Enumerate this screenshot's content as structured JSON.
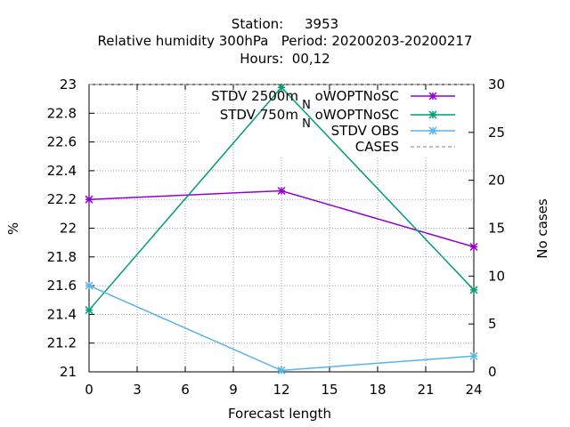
{
  "title": {
    "line1": "Station:     3953",
    "line2": "Relative humidity 300hPa   Period: 20200203-20200217",
    "line3": "Hours:  00,12"
  },
  "chart_data": {
    "type": "line",
    "xlabel": "Forecast length",
    "ylabel": "%",
    "y2label": "No cases",
    "xlim": [
      0,
      24
    ],
    "ylim": [
      21,
      23
    ],
    "y2lim": [
      0,
      30
    ],
    "xticks": [
      "0",
      "3",
      "6",
      "9",
      "12",
      "15",
      "18",
      "21",
      "24"
    ],
    "yticks": [
      "21",
      "21.2",
      "21.4",
      "21.6",
      "21.8",
      "22",
      "22.2",
      "22.4",
      "22.6",
      "22.8",
      "23"
    ],
    "y2ticks": [
      "0",
      "5",
      "10",
      "15",
      "20",
      "25",
      "30"
    ],
    "grid": true,
    "legend_position": "top-right",
    "x": [
      0,
      12,
      24
    ],
    "series": [
      {
        "name": "STDV 2500m_NoWOPTNoSC",
        "label_main": "STDV 2500m",
        "label_sub": "N",
        "label_rest": "oWOPTNoSC",
        "axis": "y",
        "values": [
          22.2,
          22.26,
          21.87
        ],
        "color": "#9400d3",
        "marker": "x"
      },
      {
        "name": "STDV 750m_NoWOPTNoSC",
        "label_main": "STDV 750m",
        "label_sub": "N",
        "label_rest": "oWOPTNoSC",
        "axis": "y",
        "values": [
          21.43,
          22.98,
          21.57
        ],
        "color": "#009e73",
        "marker": "x"
      },
      {
        "name": "STDV OBS",
        "label_main": "STDV OBS",
        "label_sub": "",
        "label_rest": "",
        "axis": "y",
        "values": [
          21.6,
          21.01,
          21.11
        ],
        "color": "#56b4e9",
        "marker": "x"
      },
      {
        "name": "CASES",
        "label_main": "CASES",
        "label_sub": "",
        "label_rest": "",
        "axis": "y2",
        "values": [
          30,
          30,
          30
        ],
        "color": "#808080",
        "dashed": true
      }
    ]
  }
}
